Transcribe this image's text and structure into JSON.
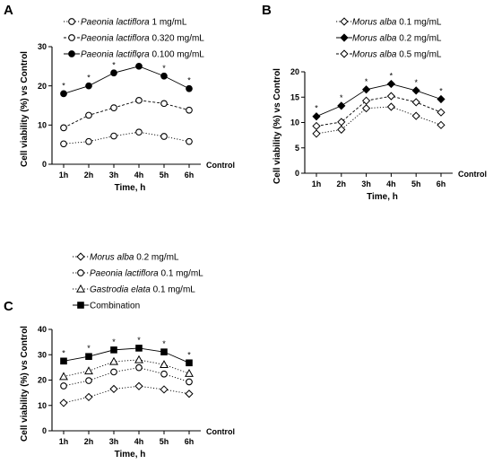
{
  "chart_data": [
    {
      "panel": "A",
      "type": "line",
      "categories": [
        "1h",
        "2h",
        "3h",
        "4h",
        "5h",
        "6h"
      ],
      "extra_x_label": "Control",
      "xlabel": "Time, h",
      "ylabel": "Cell viability (%) vs Control",
      "ylim": [
        0,
        30
      ],
      "yticks": [
        0,
        10,
        20,
        30
      ],
      "grid": false,
      "legend_position": "top",
      "series": [
        {
          "name_italic": "Paeonia lactiflora",
          "name_rest": " 1 mg/mL",
          "marker": "circle-open",
          "line": "dotted",
          "values": [
            5.2,
            5.8,
            7.2,
            8.2,
            7.1,
            5.8
          ],
          "significant": [
            false,
            false,
            false,
            false,
            false,
            false
          ]
        },
        {
          "name_italic": "Paeonia lactiflora",
          "name_rest": " 0.320 mg/mL",
          "marker": "circle-open",
          "line": "dashed",
          "values": [
            9.3,
            12.5,
            14.4,
            16.3,
            15.5,
            13.8
          ],
          "significant": [
            false,
            false,
            false,
            false,
            false,
            false
          ]
        },
        {
          "name_italic": "Paeonia lactiflora",
          "name_rest": " 0.100 mg/mL",
          "marker": "circle-filled",
          "line": "solid",
          "values": [
            18.0,
            20.0,
            23.3,
            25.0,
            22.5,
            19.3
          ],
          "significant": [
            true,
            true,
            true,
            true,
            true,
            true
          ]
        }
      ]
    },
    {
      "panel": "B",
      "type": "line",
      "categories": [
        "1h",
        "2h",
        "3h",
        "4h",
        "5h",
        "6h"
      ],
      "extra_x_label": "Control",
      "xlabel": "Time, h",
      "ylabel": "Cell viability (%) vs Control",
      "ylim": [
        0,
        20
      ],
      "yticks": [
        0,
        5,
        10,
        15,
        20
      ],
      "grid": false,
      "legend_position": "top",
      "series": [
        {
          "name_italic": "Morus alba",
          "name_rest": " 0.1 mg/mL",
          "marker": "diamond-open",
          "line": "dotted",
          "values": [
            7.8,
            8.6,
            12.8,
            13.1,
            11.3,
            9.5
          ],
          "significant": [
            false,
            false,
            false,
            false,
            false,
            false
          ]
        },
        {
          "name_italic": "Morus alba",
          "name_rest": " 0.2 mg/mL",
          "marker": "diamond-filled",
          "line": "solid",
          "values": [
            11.2,
            13.3,
            16.5,
            17.6,
            16.3,
            14.6
          ],
          "significant": [
            true,
            true,
            true,
            true,
            true,
            true
          ]
        },
        {
          "name_italic": "Morus alba",
          "name_rest": " 0.5 mg/mL",
          "marker": "diamond-open",
          "line": "dashed",
          "values": [
            9.3,
            10.1,
            14.3,
            15.2,
            14.0,
            12.0
          ],
          "significant": [
            false,
            false,
            false,
            false,
            false,
            false
          ]
        }
      ]
    },
    {
      "panel": "C",
      "type": "line",
      "categories": [
        "1h",
        "2h",
        "3h",
        "4h",
        "5h",
        "6h"
      ],
      "extra_x_label": "Control",
      "xlabel": "Time, h",
      "ylabel": "Cell viability (%) vs Control",
      "ylim": [
        0,
        40
      ],
      "yticks": [
        0,
        10,
        20,
        30,
        40
      ],
      "grid": false,
      "legend_position": "top",
      "series": [
        {
          "name_italic": "Morus alba",
          "name_rest": " 0.2 mg/mL",
          "marker": "diamond-open",
          "line": "dotted",
          "values": [
            11.0,
            13.3,
            16.5,
            17.6,
            16.3,
            14.6
          ],
          "significant": [
            false,
            false,
            false,
            false,
            false,
            false
          ]
        },
        {
          "name_italic": "Paeonia lactiflora",
          "name_rest": " 0.1 mg/mL",
          "marker": "circle-open",
          "line": "dotted",
          "values": [
            17.7,
            19.8,
            23.2,
            24.9,
            22.4,
            19.3
          ],
          "significant": [
            false,
            false,
            false,
            false,
            false,
            false
          ]
        },
        {
          "name_italic": "Gastrodia elata",
          "name_rest": " 0.1 mg/mL",
          "marker": "triangle-open",
          "line": "dotted",
          "values": [
            21.4,
            23.6,
            27.3,
            28.0,
            26.1,
            22.6
          ],
          "significant": [
            false,
            false,
            false,
            false,
            false,
            false
          ]
        },
        {
          "name_italic": "",
          "name_rest": "Combination",
          "marker": "square-filled",
          "line": "solid",
          "values": [
            27.5,
            29.3,
            31.9,
            32.6,
            31.1,
            26.8
          ],
          "significant": [
            true,
            true,
            true,
            true,
            true,
            true
          ]
        }
      ]
    }
  ]
}
